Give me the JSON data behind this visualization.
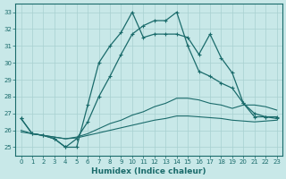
{
  "title": "",
  "xlabel": "Humidex (Indice chaleur)",
  "xlim": [
    -0.5,
    23.5
  ],
  "ylim": [
    24.5,
    33.5
  ],
  "yticks": [
    25,
    26,
    27,
    28,
    29,
    30,
    31,
    32,
    33
  ],
  "xticks": [
    0,
    1,
    2,
    3,
    4,
    5,
    6,
    7,
    8,
    9,
    10,
    11,
    12,
    13,
    14,
    15,
    16,
    17,
    18,
    19,
    20,
    21,
    22,
    23
  ],
  "bg_color": "#c8e8e8",
  "grid_color": "#a8d0d0",
  "line_color": "#1a6b6b",
  "line1_x": [
    0,
    1,
    2,
    3,
    4,
    5,
    6,
    7,
    8,
    9,
    10,
    11,
    12,
    13,
    14,
    15,
    16,
    17,
    18,
    19,
    20,
    21,
    22,
    23
  ],
  "line1_y": [
    26.7,
    25.8,
    25.7,
    25.5,
    25.0,
    25.0,
    27.5,
    30.0,
    31.0,
    31.8,
    33.0,
    31.5,
    31.7,
    31.7,
    31.7,
    31.5,
    30.5,
    31.7,
    30.3,
    29.4,
    27.6,
    26.8,
    26.8,
    26.8
  ],
  "line2_x": [
    0,
    1,
    2,
    3,
    4,
    5,
    6,
    7,
    8,
    9,
    10,
    11,
    12,
    13,
    14,
    15,
    16,
    17,
    18,
    19,
    20,
    21,
    22,
    23
  ],
  "line2_y": [
    26.7,
    25.8,
    25.7,
    25.5,
    25.0,
    25.5,
    26.5,
    28.0,
    29.2,
    30.5,
    31.7,
    32.2,
    32.5,
    32.5,
    33.0,
    31.0,
    29.5,
    29.2,
    28.8,
    28.5,
    27.6,
    27.0,
    26.8,
    26.7
  ],
  "line3_x": [
    0,
    1,
    2,
    3,
    4,
    5,
    6,
    7,
    8,
    9,
    10,
    11,
    12,
    13,
    14,
    15,
    16,
    17,
    18,
    19,
    20,
    21,
    22,
    23
  ],
  "line3_y": [
    26.0,
    25.8,
    25.7,
    25.6,
    25.5,
    25.6,
    25.8,
    26.1,
    26.4,
    26.6,
    26.9,
    27.1,
    27.4,
    27.6,
    27.9,
    27.9,
    27.8,
    27.6,
    27.5,
    27.3,
    27.5,
    27.5,
    27.4,
    27.2
  ],
  "line4_x": [
    0,
    1,
    2,
    3,
    4,
    5,
    6,
    7,
    8,
    9,
    10,
    11,
    12,
    13,
    14,
    15,
    16,
    17,
    18,
    19,
    20,
    21,
    22,
    23
  ],
  "line4_y": [
    25.9,
    25.8,
    25.7,
    25.6,
    25.5,
    25.55,
    25.7,
    25.85,
    26.0,
    26.15,
    26.3,
    26.45,
    26.6,
    26.7,
    26.85,
    26.85,
    26.8,
    26.75,
    26.7,
    26.6,
    26.55,
    26.5,
    26.55,
    26.6
  ]
}
